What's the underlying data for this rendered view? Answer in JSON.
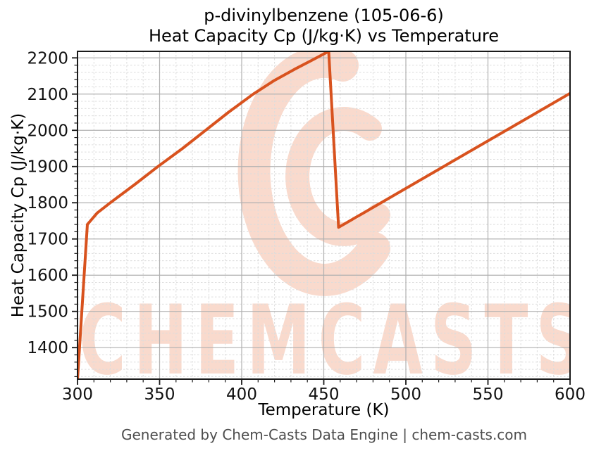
{
  "header": {
    "title_line1": "p-divinylbenzene (105-06-6)",
    "title_line2": "Heat Capacity Cp (J/kg·K) vs Temperature"
  },
  "footer": {
    "text": "Generated by Chem-Casts Data Engine | chem-casts.com",
    "color": "#4d4d4d"
  },
  "watermark": {
    "text": "CHEMCASTS",
    "color": "#f9dacd"
  },
  "chart_data": {
    "type": "line",
    "title": "p-divinylbenzene (105-06-6) Heat Capacity Cp (J/kg·K) vs Temperature",
    "xlabel": "Temperature (K)",
    "ylabel": "Heat Capacity Cp (J/kg·K)",
    "xlim": [
      300,
      600
    ],
    "ylim": [
      1313,
      2218
    ],
    "x_ticks": [
      300,
      350,
      400,
      450,
      500,
      550,
      600
    ],
    "y_ticks": [
      1400,
      1500,
      1600,
      1700,
      1800,
      1900,
      2000,
      2100,
      2200
    ],
    "x_minor_step": 10,
    "y_minor_step": 20,
    "grid": "major-solid plus minor-dashed",
    "legend": "none",
    "colors": {
      "line": "#d8521e",
      "major_grid": "#b0b0b0",
      "minor_grid": "#dcdcdc",
      "spine": "#1a1a1a"
    },
    "series": [
      {
        "name": "Heat Capacity Cp",
        "color": "#d8521e",
        "points": [
          [
            300,
            1313
          ],
          [
            306,
            1740
          ],
          [
            312,
            1772
          ],
          [
            320,
            1800
          ],
          [
            335,
            1851
          ],
          [
            349,
            1900
          ],
          [
            364,
            1950
          ],
          [
            378,
            2000
          ],
          [
            392,
            2050
          ],
          [
            407,
            2100
          ],
          [
            420,
            2138
          ],
          [
            432,
            2168
          ],
          [
            443,
            2194
          ],
          [
            453,
            2218
          ],
          [
            459,
            1732
          ],
          [
            600,
            2102
          ]
        ]
      }
    ]
  }
}
